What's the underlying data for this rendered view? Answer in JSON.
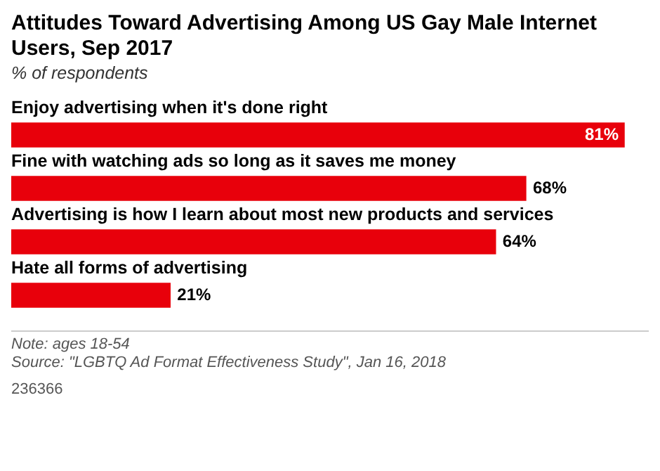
{
  "chart_data": {
    "type": "bar",
    "orientation": "horizontal",
    "title": "Attitudes Toward Advertising Among US Gay Male Internet Users, Sep 2017",
    "subtitle": "% of respondents",
    "categories": [
      "Enjoy advertising when it's done right",
      "Fine with watching ads so long as it saves me money",
      "Advertising is how I learn about most new products and services",
      "Hate all forms of advertising"
    ],
    "values": [
      81,
      68,
      64,
      21
    ],
    "value_labels": [
      "81%",
      "68%",
      "64%",
      "21%"
    ],
    "color": "#e8000b",
    "annotations": [
      "Note: ages 18-54",
      "Source: \"LGBTQ Ad Format Effectiveness Study\", Jan 16, 2018",
      "236366"
    ]
  }
}
